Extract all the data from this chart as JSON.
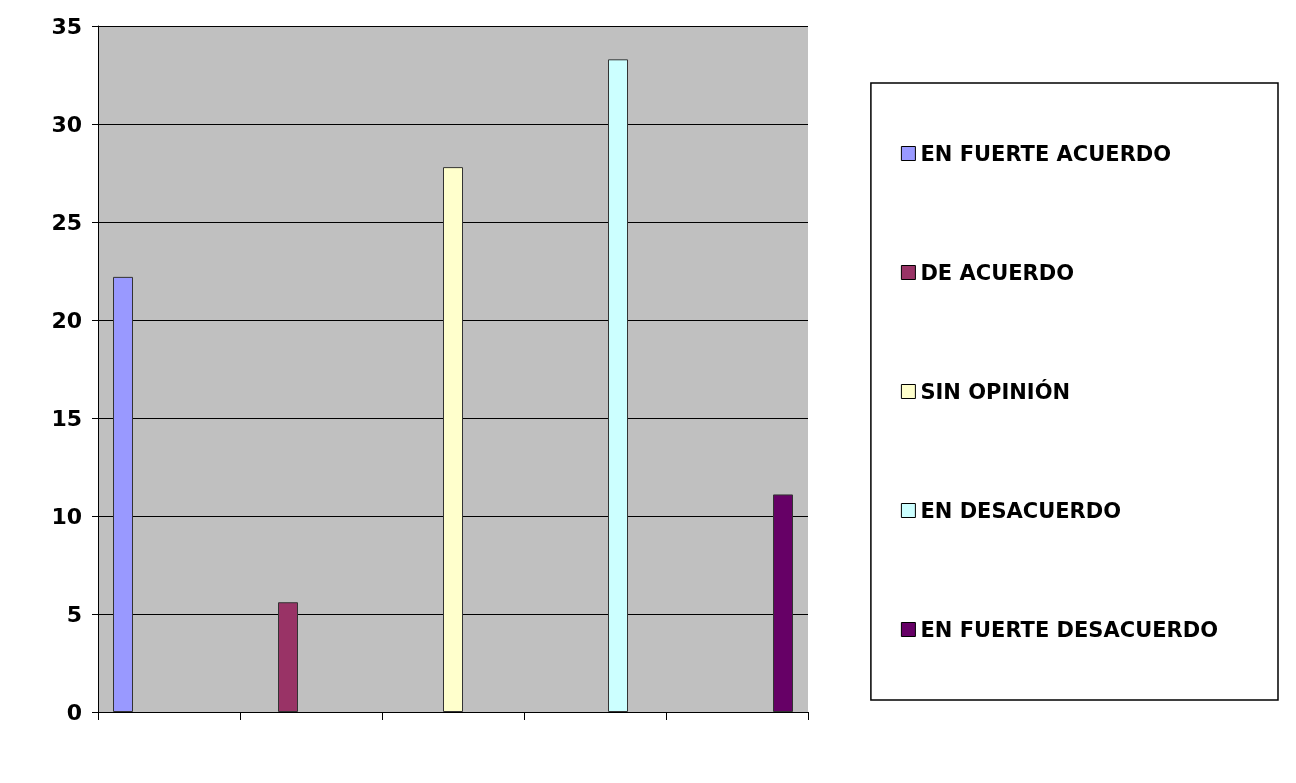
{
  "chart_data": {
    "type": "bar",
    "categories": [
      null,
      null,
      null,
      null,
      null
    ],
    "series": [
      {
        "name": "EN FUERTE ACUERDO",
        "color": "#9999ff",
        "values": [
          22.2,
          null,
          null,
          null,
          null
        ]
      },
      {
        "name": "DE ACUERDO",
        "color": "#993366",
        "values": [
          null,
          5.6,
          null,
          null,
          null
        ]
      },
      {
        "name": "SIN OPINIÓN",
        "color": "#ffffcc",
        "values": [
          null,
          null,
          27.8,
          null,
          null
        ]
      },
      {
        "name": "EN DESACUERDO",
        "color": "#ccffff",
        "values": [
          null,
          null,
          null,
          33.3,
          null
        ]
      },
      {
        "name": "EN FUERTE DESACUERDO",
        "color": "#660066",
        "values": [
          null,
          null,
          null,
          null,
          11.1
        ]
      }
    ],
    "ylim": [
      0,
      35
    ],
    "yticks": [
      0,
      5,
      10,
      15,
      20,
      25,
      30,
      35
    ],
    "grid": "y",
    "legend": "right"
  }
}
